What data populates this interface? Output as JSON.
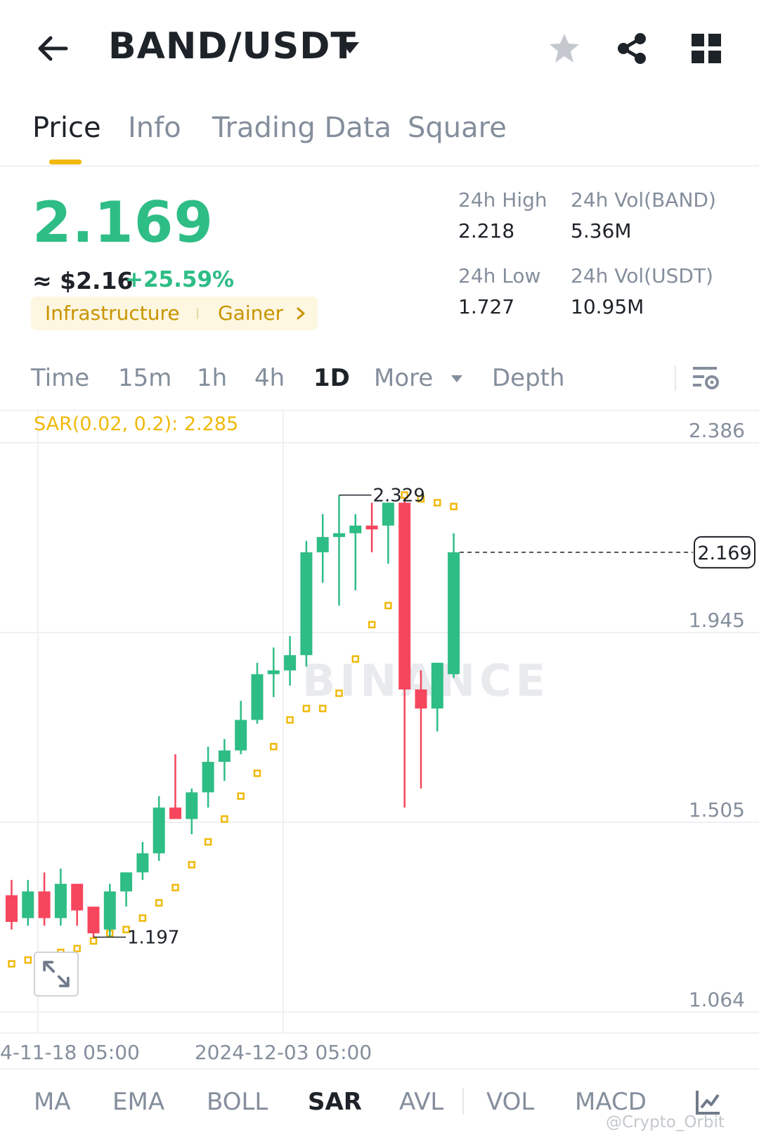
{
  "header": {
    "pair": "BAND/USDT",
    "icons": [
      "back-arrow-icon",
      "caret-down-icon",
      "star-icon",
      "share-icon",
      "grid-icon"
    ]
  },
  "tabs": [
    {
      "label": "Price",
      "active": true
    },
    {
      "label": "Info",
      "active": false
    },
    {
      "label": "Trading Data",
      "active": false
    },
    {
      "label": "Square",
      "active": false
    }
  ],
  "ticker": {
    "price": "2.169",
    "usd_approx": "≈ $2.16",
    "change": "+25.59%",
    "tags": [
      "Infrastructure",
      "Gainer"
    ],
    "stats": {
      "high_label": "24h High",
      "high_value": "2.218",
      "low_label": "24h Low",
      "low_value": "1.727",
      "vol_band_label": "24h Vol(BAND)",
      "vol_band_value": "5.36M",
      "vol_usdt_label": "24h Vol(USDT)",
      "vol_usdt_value": "10.95M"
    }
  },
  "timeframes": [
    "Time",
    "15m",
    "1h",
    "4h",
    "1D",
    "More",
    "Depth"
  ],
  "active_timeframe": "1D",
  "colors": {
    "up": "#2ebd85",
    "down": "#f6465d",
    "accent": "#f0b90b"
  },
  "chart_data": {
    "type": "candlestick",
    "indicator_label": "SAR(0.02, 0.2): 2.285",
    "y_ticks": [
      "2.386",
      "1.945",
      "1.505",
      "1.064"
    ],
    "x_ticks": [
      "4-11-18 05:00",
      "2024-12-03 05:00"
    ],
    "last_price_label": "2.169",
    "high_label": "2.329",
    "low_label": "1.197",
    "candles": [
      {
        "o": 1.27,
        "h": 1.31,
        "l": 1.18,
        "c": 1.2
      },
      {
        "o": 1.21,
        "h": 1.31,
        "l": 1.19,
        "c": 1.28
      },
      {
        "o": 1.28,
        "h": 1.33,
        "l": 1.19,
        "c": 1.21
      },
      {
        "o": 1.21,
        "h": 1.34,
        "l": 1.19,
        "c": 1.3
      },
      {
        "o": 1.3,
        "h": 1.3,
        "l": 1.19,
        "c": 1.23
      },
      {
        "o": 1.24,
        "h": 1.24,
        "l": 1.16,
        "c": 1.17
      },
      {
        "o": 1.18,
        "h": 1.3,
        "l": 1.16,
        "c": 1.28
      },
      {
        "o": 1.28,
        "h": 1.32,
        "l": 1.24,
        "c": 1.33
      },
      {
        "o": 1.33,
        "h": 1.41,
        "l": 1.31,
        "c": 1.38
      },
      {
        "o": 1.38,
        "h": 1.53,
        "l": 1.36,
        "c": 1.5
      },
      {
        "o": 1.5,
        "h": 1.64,
        "l": 1.48,
        "c": 1.47
      },
      {
        "o": 1.47,
        "h": 1.55,
        "l": 1.43,
        "c": 1.54
      },
      {
        "o": 1.54,
        "h": 1.66,
        "l": 1.5,
        "c": 1.62
      },
      {
        "o": 1.62,
        "h": 1.68,
        "l": 1.57,
        "c": 1.65
      },
      {
        "o": 1.65,
        "h": 1.78,
        "l": 1.64,
        "c": 1.73
      },
      {
        "o": 1.73,
        "h": 1.88,
        "l": 1.72,
        "c": 1.85
      },
      {
        "o": 1.85,
        "h": 1.92,
        "l": 1.79,
        "c": 1.86
      },
      {
        "o": 1.86,
        "h": 1.95,
        "l": 1.82,
        "c": 1.9
      },
      {
        "o": 1.9,
        "h": 2.2,
        "l": 1.87,
        "c": 2.17
      },
      {
        "o": 2.17,
        "h": 2.27,
        "l": 2.09,
        "c": 2.21
      },
      {
        "o": 2.21,
        "h": 2.32,
        "l": 2.03,
        "c": 2.22
      },
      {
        "o": 2.22,
        "h": 2.27,
        "l": 2.07,
        "c": 2.24
      },
      {
        "o": 2.24,
        "h": 2.3,
        "l": 2.17,
        "c": 2.23
      },
      {
        "o": 2.24,
        "h": 2.3,
        "l": 2.14,
        "c": 2.3
      },
      {
        "o": 2.3,
        "h": 2.31,
        "l": 1.5,
        "c": 1.81
      },
      {
        "o": 1.81,
        "h": 1.86,
        "l": 1.55,
        "c": 1.76
      },
      {
        "o": 1.76,
        "h": 1.88,
        "l": 1.7,
        "c": 1.88
      },
      {
        "o": 1.85,
        "h": 2.22,
        "l": 1.84,
        "c": 2.17
      }
    ],
    "sar": [
      1.09,
      1.1,
      1.11,
      1.12,
      1.13,
      1.15,
      1.17,
      1.18,
      1.21,
      1.25,
      1.29,
      1.35,
      1.41,
      1.47,
      1.53,
      1.59,
      1.66,
      1.73,
      1.76,
      1.76,
      1.8,
      1.89,
      1.98,
      2.03,
      2.32,
      2.31,
      2.3,
      2.29
    ],
    "y_range": [
      1.03,
      2.45
    ]
  },
  "indicators": [
    "MA",
    "EMA",
    "BOLL",
    "SAR",
    "AVL",
    "VOL",
    "MACD"
  ],
  "active_indicator": "SAR",
  "watermark": "@Crypto_Orbit"
}
